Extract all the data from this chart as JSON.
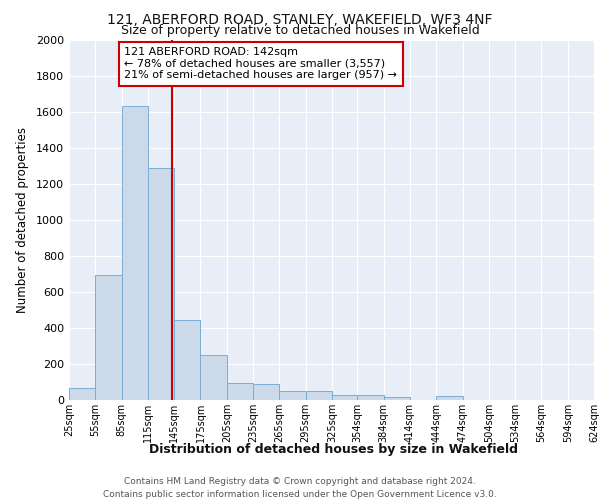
{
  "title1": "121, ABERFORD ROAD, STANLEY, WAKEFIELD, WF3 4NF",
  "title2": "Size of property relative to detached houses in Wakefield",
  "xlabel": "Distribution of detached houses by size in Wakefield",
  "ylabel": "Number of detached properties",
  "bar_edges": [
    25,
    55,
    85,
    115,
    145,
    175,
    205,
    235,
    265,
    295,
    325,
    354,
    384,
    414,
    444,
    474,
    504,
    534,
    564,
    594,
    624
  ],
  "bar_heights": [
    65,
    695,
    1635,
    1290,
    445,
    250,
    95,
    90,
    50,
    50,
    30,
    30,
    15,
    0,
    20,
    0,
    0,
    0,
    0,
    0
  ],
  "bar_color": "#ccd9e8",
  "bar_edge_color": "#7aaed4",
  "vline_x": 142,
  "vline_color": "#cc0000",
  "annotation_text": "121 ABERFORD ROAD: 142sqm\n← 78% of detached houses are smaller (3,557)\n21% of semi-detached houses are larger (957) →",
  "annotation_box_color": "#ffffff",
  "annotation_box_edge_color": "#cc0000",
  "ylim": [
    0,
    2000
  ],
  "yticks": [
    0,
    200,
    400,
    600,
    800,
    1000,
    1200,
    1400,
    1600,
    1800,
    2000
  ],
  "tick_labels": [
    "25sqm",
    "55sqm",
    "85sqm",
    "115sqm",
    "145sqm",
    "175sqm",
    "205sqm",
    "235sqm",
    "265sqm",
    "295sqm",
    "325sqm",
    "354sqm",
    "384sqm",
    "414sqm",
    "444sqm",
    "474sqm",
    "504sqm",
    "534sqm",
    "564sqm",
    "594sqm",
    "624sqm"
  ],
  "bg_color": "#e8eef8",
  "grid_color": "#ffffff",
  "footer_text": "Contains HM Land Registry data © Crown copyright and database right 2024.\nContains public sector information licensed under the Open Government Licence v3.0."
}
